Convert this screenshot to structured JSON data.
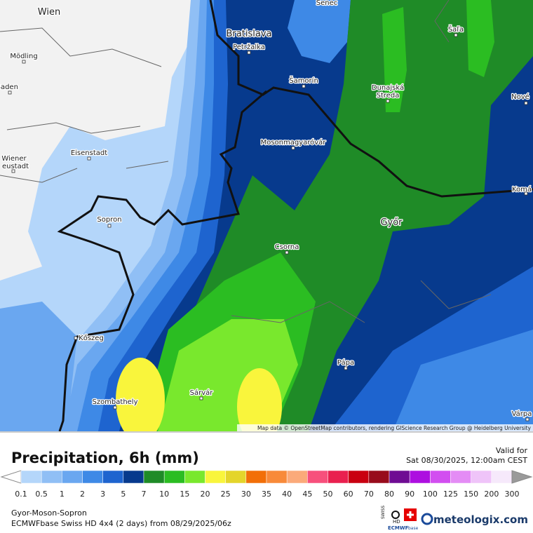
{
  "map": {
    "cities": [
      "Wien",
      "Senec",
      "Šaľa",
      "Bratislava",
      "Petržalka",
      "Mödling",
      "Šamorín",
      "Dunajská",
      "Streda",
      "Nové",
      "Baden",
      "Mosonmagyaróvár",
      "Eisenstadt",
      "Wiener",
      "eustadt",
      "Komá",
      "Sopron",
      "Győr",
      "Csorna",
      "Kőszeg",
      "Pápa",
      "Szombathely",
      "Sárvár",
      "Várpa"
    ],
    "attribution": "Map data © OpenStreetMap contributors, rendering GIScience Research Group @ Heidelberg University"
  },
  "header": {
    "title": "Precipitation, 6h (mm)",
    "valid_label": "Valid for",
    "valid_time": "Sat 08/30/2025, 12:00am CEST"
  },
  "legend": {
    "levels": [
      0.1,
      0.5,
      1,
      2,
      3,
      5,
      7,
      10,
      15,
      20,
      25,
      30,
      35,
      40,
      45,
      50,
      60,
      70,
      80,
      90,
      100,
      125,
      150,
      200,
      300
    ],
    "colors": [
      "#b4d6fa",
      "#90bff5",
      "#6aa7f0",
      "#3e89e6",
      "#1e64cf",
      "#073a8d",
      "#1f8b27",
      "#2bbd22",
      "#79e82d",
      "#f9f53c",
      "#e4d52b",
      "#f26f08",
      "#f88a3a",
      "#fbaa7a",
      "#f7507c",
      "#e9204f",
      "#c90010",
      "#980c1c",
      "#6f0c93",
      "#ad0fe0",
      "#d24ef0",
      "#e48cf5",
      "#efc4f9",
      "#f6e9fb",
      "#d8d8d8"
    ],
    "below_color": "#ffffff",
    "above_color": "#9a9a9a"
  },
  "footer": {
    "region": "Gyor-Moson-Sopron",
    "model": "ECMWFbase Swiss HD 4x4 (2 days) from  08/29/2025/06z",
    "brand": "meteologix.com",
    "logo_swiss": "SWISS",
    "logo_hd": "HD",
    "logo_ecmwf": "ECMWF",
    "logo_base": "base"
  }
}
